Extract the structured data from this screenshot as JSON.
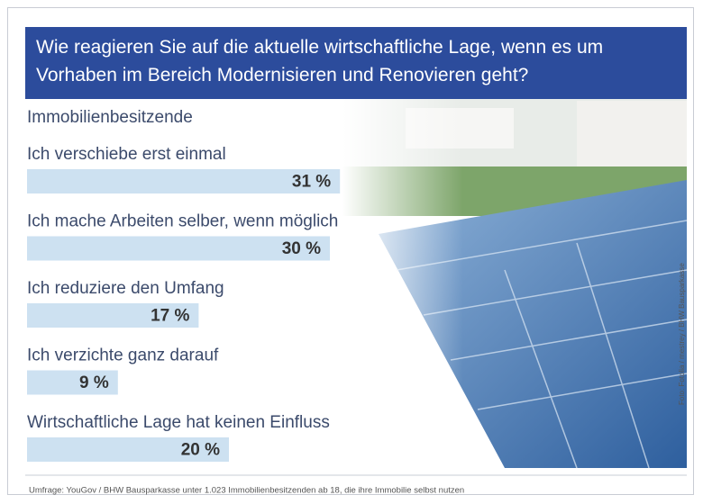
{
  "chart_data": {
    "type": "bar",
    "title": "Wie reagieren Sie auf die aktuelle wirtschaftliche Lage, wenn es um Vorhaben im Bereich Modernisieren und Renovieren geht?",
    "subtitle": "Immobilienbesitzende",
    "categories": [
      "Ich verschiebe erst einmal",
      "Ich mache Arbeiten selber, wenn möglich",
      "Ich reduziere den Umfang",
      "Ich verzichte ganz darauf",
      "Wirtschaftliche Lage hat keinen Einfluss"
    ],
    "values": [
      31,
      30,
      17,
      9,
      20
    ],
    "value_labels": [
      "31 %",
      "30 %",
      "17 %",
      "9 %",
      "20 %"
    ],
    "color": "#cde1f1",
    "credit": "Foto: Fotolia / mestrey / BHW Bausparkasse",
    "source": "Umfrage: YouGov / BHW Bausparkasse unter 1.023 Immobilienbesitzenden ab 18, die ihre Immobilie selbst nutzen"
  }
}
